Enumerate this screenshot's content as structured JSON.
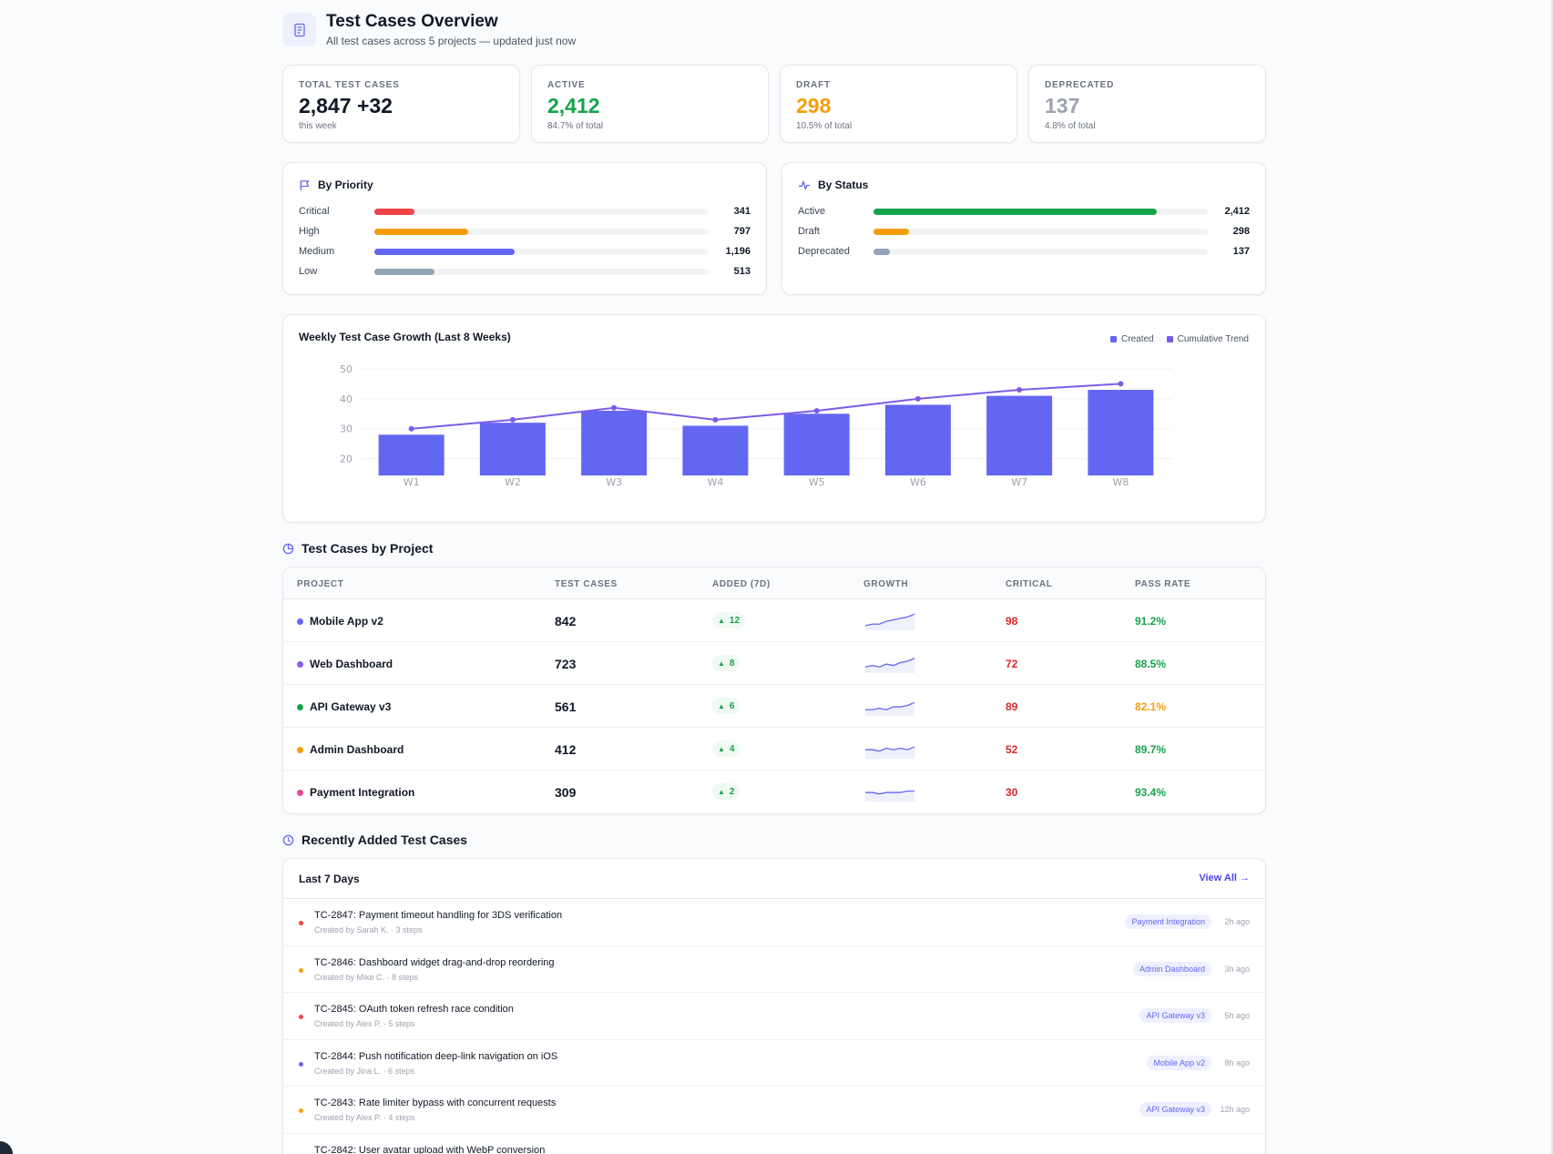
{
  "header": {
    "title": "Test Cases Overview",
    "subtitle": "All test cases across 5 projects — updated just now",
    "icon": "document-icon"
  },
  "stats": [
    {
      "label": "TOTAL TEST CASES",
      "value": "2,847 +32",
      "sub": "this week",
      "color": "#111827"
    },
    {
      "label": "ACTIVE",
      "value": "2,412",
      "sub": "84.7% of total",
      "color": "#16a34a"
    },
    {
      "label": "DRAFT",
      "value": "298",
      "sub": "10.5% of total",
      "color": "#f59e0b"
    },
    {
      "label": "DEPRECATED",
      "value": "137",
      "sub": "4.8% of total",
      "color": "#9ca3af"
    }
  ],
  "priority": {
    "title": "By Priority",
    "icon": "flag-icon",
    "rows": [
      {
        "label": "Critical",
        "value": "341",
        "fraction": 0.12,
        "color": "#ef4444"
      },
      {
        "label": "High",
        "value": "797",
        "fraction": 0.28,
        "color": "#f59e0b"
      },
      {
        "label": "Medium",
        "value": "1,196",
        "fraction": 0.42,
        "color": "#6366f1"
      },
      {
        "label": "Low",
        "value": "513",
        "fraction": 0.18,
        "color": "#94a3b8"
      }
    ]
  },
  "status": {
    "title": "By Status",
    "icon": "activity-icon",
    "rows": [
      {
        "label": "Active",
        "value": "2,412",
        "fraction": 0.847,
        "color": "#16a34a"
      },
      {
        "label": "Draft",
        "value": "298",
        "fraction": 0.105,
        "color": "#f59e0b"
      },
      {
        "label": "Deprecated",
        "value": "137",
        "fraction": 0.048,
        "color": "#94a3b8"
      }
    ]
  },
  "chart_data": {
    "type": "bar",
    "title": "Weekly Test Case Growth (Last 8 Weeks)",
    "categories": [
      "W1",
      "W2",
      "W3",
      "W4",
      "W5",
      "W6",
      "W7",
      "W8"
    ],
    "series": [
      {
        "name": "Created",
        "type": "bar",
        "values": [
          28,
          32,
          36,
          31,
          35,
          38,
          41,
          43
        ],
        "color": "#6366f1"
      },
      {
        "name": "Cumulative Trend",
        "type": "line",
        "values": [
          30,
          33,
          37,
          33,
          36,
          40,
          43,
          45
        ],
        "color": "#7c5ce6"
      }
    ],
    "yticks": [
      20,
      30,
      40,
      50
    ],
    "ylim": [
      15,
      50
    ],
    "grid": true,
    "legend": "top-right",
    "xlabel": "",
    "ylabel": ""
  },
  "projects_section": {
    "title": "Test Cases by Project",
    "icon": "pie-chart-icon",
    "columns": [
      "PROJECT",
      "TEST CASES",
      "ADDED (7D)",
      "GROWTH",
      "CRITICAL",
      "PASS RATE"
    ],
    "rows": [
      {
        "name": "Mobile App v2",
        "dot": "#6366f1",
        "cases": "842",
        "added": "12",
        "critical": "98",
        "pass": "91.2%",
        "pass_color": "#16a34a",
        "spark": [
          2,
          3,
          3,
          5,
          6,
          7,
          8,
          10
        ]
      },
      {
        "name": "Web Dashboard",
        "dot": "#8b5cf6",
        "cases": "723",
        "added": "8",
        "critical": "72",
        "pass": "88.5%",
        "pass_color": "#16a34a",
        "spark": [
          3,
          4,
          3,
          5,
          4,
          6,
          7,
          9
        ]
      },
      {
        "name": "API Gateway v3",
        "dot": "#16a34a",
        "cases": "561",
        "added": "6",
        "critical": "89",
        "pass": "82.1%",
        "pass_color": "#f59e0b",
        "spark": [
          3,
          3,
          4,
          3,
          5,
          5,
          6,
          8
        ]
      },
      {
        "name": "Admin Dashboard",
        "dot": "#f59e0b",
        "cases": "412",
        "added": "4",
        "critical": "52",
        "pass": "89.7%",
        "pass_color": "#16a34a",
        "spark": [
          5,
          5,
          4,
          6,
          5,
          6,
          5,
          7
        ]
      },
      {
        "name": "Payment Integration",
        "dot": "#ec4899",
        "cases": "309",
        "added": "2",
        "critical": "30",
        "pass": "93.4%",
        "pass_color": "#16a34a",
        "spark": [
          5,
          5,
          4,
          5,
          5,
          5,
          6,
          6
        ]
      }
    ]
  },
  "recent_section": {
    "title": "Recently Added Test Cases",
    "icon": "clock-icon",
    "card_title": "Last 7 Days",
    "view_all": "View All →",
    "items": [
      {
        "title": "TC-2847: Payment timeout handling for 3DS verification",
        "meta": "Created by Sarah K. · 3 steps",
        "tag": "Payment Integration",
        "time": "2h ago",
        "dot": "#ef4444"
      },
      {
        "title": "TC-2846: Dashboard widget drag-and-drop reordering",
        "meta": "Created by Mike C. · 8 steps",
        "tag": "Admin Dashboard",
        "time": "3h ago",
        "dot": "#f59e0b"
      },
      {
        "title": "TC-2845: OAuth token refresh race condition",
        "meta": "Created by Alex P. · 5 steps",
        "tag": "API Gateway v3",
        "time": "5h ago",
        "dot": "#ef4444"
      },
      {
        "title": "TC-2844: Push notification deep-link navigation on iOS",
        "meta": "Created by Jina L. · 6 steps",
        "tag": "Mobile App v2",
        "time": "8h ago",
        "dot": "#6366f1"
      },
      {
        "title": "TC-2843: Rate limiter bypass with concurrent requests",
        "meta": "Created by Alex P. · 4 steps",
        "tag": "API Gateway v3",
        "time": "12h ago",
        "dot": "#f59e0b"
      },
      {
        "title": "TC-2842: User avatar upload with WebP conversion",
        "meta": "",
        "tag": "",
        "time": "",
        "dot": "#f59e0b"
      }
    ]
  }
}
